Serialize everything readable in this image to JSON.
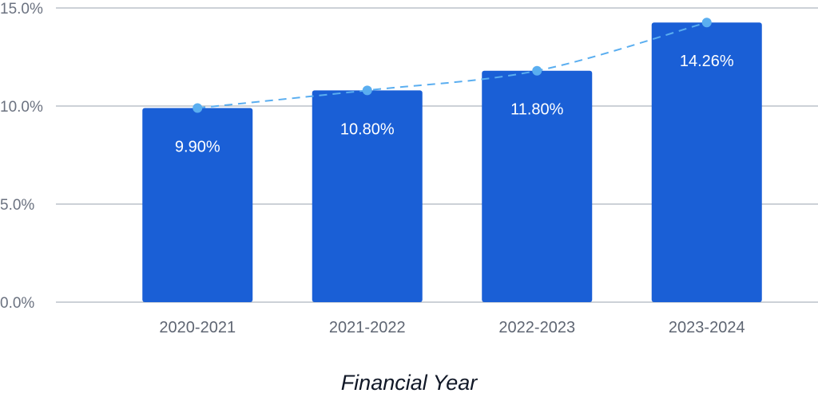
{
  "chart_data": {
    "type": "bar",
    "categories": [
      "2020-2021",
      "2021-2022",
      "2022-2023",
      "2023-2024"
    ],
    "values": [
      9.9,
      10.8,
      11.8,
      14.26
    ],
    "data_labels": [
      "9.90%",
      "10.80%",
      "11.80%",
      "14.26%"
    ],
    "title": "",
    "xlabel": "Financial Year",
    "ylabel": "",
    "ylim": [
      0,
      15
    ],
    "yticks": [
      0,
      5,
      10,
      15
    ],
    "ytick_labels": [
      "0.0%",
      "5.0%",
      "10.0%",
      "15.0%"
    ],
    "grid": true,
    "trend_line": {
      "style": "dashed",
      "values": [
        9.9,
        10.8,
        11.8,
        14.26
      ]
    },
    "colors": {
      "bar": "#1a5fd6",
      "trend": "#5aaef0",
      "grid": "#9aa3af",
      "axis_text": "#6b7280",
      "title_text": "#111827"
    }
  }
}
